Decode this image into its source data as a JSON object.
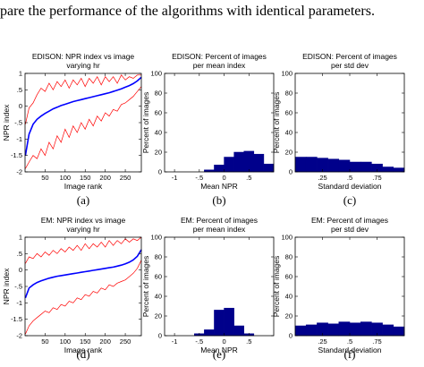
{
  "intro_text": "pare the performance of the algorithms with identical parameters.",
  "colors": {
    "red": "#ff0000",
    "blue": "#0000ff",
    "bar": "#00008b",
    "axis": "#000000"
  },
  "chart_data": [
    {
      "id": "a",
      "caption": "(a)",
      "type": "line",
      "title": [
        "EDISON: NPR index vs image",
        "varying hr"
      ],
      "xlabel": "Image rank",
      "ylabel": "NPR index",
      "xlim": [
        0,
        290
      ],
      "ylim": [
        -2,
        1
      ],
      "xticks": [
        50,
        100,
        150,
        200,
        250
      ],
      "yticks": [
        -2,
        -1.5,
        -1,
        -0.5,
        0,
        0.5,
        1
      ],
      "x": [
        1,
        10,
        20,
        30,
        40,
        50,
        60,
        70,
        80,
        90,
        100,
        110,
        120,
        130,
        140,
        150,
        160,
        170,
        180,
        190,
        200,
        210,
        220,
        230,
        240,
        250,
        260,
        270,
        280,
        290
      ],
      "series": [
        {
          "role": "max",
          "color": "#ff0000",
          "values": [
            -0.55,
            -0.05,
            0.1,
            0.35,
            0.55,
            0.45,
            0.7,
            0.5,
            0.75,
            0.6,
            0.8,
            0.55,
            0.8,
            0.65,
            0.85,
            0.6,
            0.85,
            0.7,
            0.9,
            0.65,
            0.9,
            0.75,
            0.9,
            0.7,
            0.95,
            0.8,
            0.9,
            0.85,
            0.95,
            0.95
          ]
        },
        {
          "role": "mean",
          "color": "#0000ff",
          "values": [
            -1.5,
            -0.85,
            -0.55,
            -0.4,
            -0.3,
            -0.22,
            -0.15,
            -0.08,
            -0.03,
            0.02,
            0.06,
            0.1,
            0.14,
            0.17,
            0.2,
            0.23,
            0.26,
            0.29,
            0.32,
            0.35,
            0.38,
            0.41,
            0.45,
            0.49,
            0.53,
            0.58,
            0.63,
            0.69,
            0.77,
            0.88
          ]
        },
        {
          "role": "min",
          "color": "#ff0000",
          "values": [
            -1.9,
            -1.7,
            -1.5,
            -1.6,
            -1.3,
            -1.5,
            -1.1,
            -1.3,
            -0.9,
            -1.1,
            -0.7,
            -0.95,
            -0.6,
            -0.8,
            -0.5,
            -0.7,
            -0.4,
            -0.6,
            -0.3,
            -0.45,
            -0.2,
            -0.3,
            -0.1,
            -0.15,
            0.05,
            0.1,
            0.2,
            0.3,
            0.45,
            0.6
          ]
        }
      ]
    },
    {
      "id": "b",
      "caption": "(b)",
      "type": "bar",
      "title": [
        "EDISON: Percent of images",
        "per mean index"
      ],
      "xlabel": "Mean NPR",
      "ylabel": "Percent of images",
      "xlim": [
        -1.2,
        1.0
      ],
      "ylim": [
        0,
        100
      ],
      "xticks": [
        -1,
        -0.5,
        0,
        0.5
      ],
      "yticks": [
        0,
        20,
        40,
        60,
        80,
        100
      ],
      "bin_edges": [
        -1.0,
        -0.8,
        -0.6,
        -0.4,
        -0.2,
        0.0,
        0.2,
        0.4,
        0.6,
        0.8,
        1.0
      ],
      "values": [
        0,
        0,
        0,
        2,
        7,
        15,
        20,
        21,
        18,
        8
      ]
    },
    {
      "id": "c",
      "caption": "(c)",
      "type": "bar",
      "title": [
        "EDISON: Percent of images",
        "per std dev"
      ],
      "xlabel": "Standard deviation",
      "ylabel": "Percent of images",
      "xlim": [
        0,
        1
      ],
      "ylim": [
        0,
        100
      ],
      "xticks": [
        0.25,
        0.5,
        0.75
      ],
      "yticks": [
        0,
        20,
        40,
        60,
        80,
        100
      ],
      "bin_edges": [
        0,
        0.1,
        0.2,
        0.3,
        0.4,
        0.5,
        0.6,
        0.7,
        0.8,
        0.9,
        1.0
      ],
      "values": [
        15,
        15,
        14,
        13,
        12,
        10,
        10,
        8,
        5,
        4
      ]
    },
    {
      "id": "d",
      "caption": "(d)",
      "type": "line",
      "title": [
        "EM: NPR index vs image",
        "varying hr"
      ],
      "xlabel": "Image rank",
      "ylabel": "NPR index",
      "xlim": [
        0,
        290
      ],
      "ylim": [
        -2,
        1
      ],
      "xticks": [
        50,
        100,
        150,
        200,
        250
      ],
      "yticks": [
        -2,
        -1.5,
        -1,
        -0.5,
        0,
        0.5,
        1
      ],
      "x": [
        1,
        10,
        20,
        30,
        40,
        50,
        60,
        70,
        80,
        90,
        100,
        110,
        120,
        130,
        140,
        150,
        160,
        170,
        180,
        190,
        200,
        210,
        220,
        230,
        240,
        250,
        260,
        270,
        280,
        290
      ],
      "series": [
        {
          "role": "max",
          "color": "#ff0000",
          "values": [
            0.2,
            0.4,
            0.35,
            0.5,
            0.4,
            0.55,
            0.45,
            0.6,
            0.5,
            0.65,
            0.55,
            0.7,
            0.6,
            0.75,
            0.6,
            0.8,
            0.65,
            0.8,
            0.7,
            0.85,
            0.7,
            0.9,
            0.75,
            0.9,
            0.8,
            0.95,
            0.85,
            0.95,
            0.9,
            1.0
          ]
        },
        {
          "role": "mean",
          "color": "#0000ff",
          "values": [
            -0.85,
            -0.55,
            -0.45,
            -0.38,
            -0.33,
            -0.29,
            -0.25,
            -0.22,
            -0.19,
            -0.17,
            -0.15,
            -0.13,
            -0.11,
            -0.09,
            -0.07,
            -0.05,
            -0.03,
            -0.01,
            0.01,
            0.03,
            0.05,
            0.07,
            0.09,
            0.12,
            0.15,
            0.19,
            0.24,
            0.31,
            0.42,
            0.62
          ]
        },
        {
          "role": "min",
          "color": "#ff0000",
          "values": [
            -1.95,
            -1.7,
            -1.55,
            -1.45,
            -1.35,
            -1.25,
            -1.3,
            -1.15,
            -1.2,
            -1.05,
            -1.1,
            -0.95,
            -1.0,
            -0.85,
            -0.9,
            -0.75,
            -0.8,
            -0.65,
            -0.7,
            -0.55,
            -0.6,
            -0.45,
            -0.5,
            -0.4,
            -0.35,
            -0.3,
            -0.2,
            -0.1,
            0.05,
            0.3
          ]
        }
      ]
    },
    {
      "id": "e",
      "caption": "(e)",
      "type": "bar",
      "title": [
        "EM: Percent of images",
        "per mean index"
      ],
      "xlabel": "Mean NPR",
      "ylabel": "Percent of images",
      "xlim": [
        -1.2,
        1.0
      ],
      "ylim": [
        0,
        100
      ],
      "xticks": [
        -1,
        -0.5,
        0,
        0.5
      ],
      "yticks": [
        0,
        20,
        40,
        60,
        80,
        100
      ],
      "bin_edges": [
        -1.0,
        -0.8,
        -0.6,
        -0.4,
        -0.2,
        0.0,
        0.2,
        0.4,
        0.6,
        0.8,
        1.0
      ],
      "values": [
        0,
        0,
        2,
        6,
        26,
        28,
        10,
        2,
        0,
        0
      ]
    },
    {
      "id": "f",
      "caption": "(f)",
      "type": "bar",
      "title": [
        "EM: Percent of images",
        "per std dev"
      ],
      "xlabel": "Standard deviation",
      "ylabel": "Percent of images",
      "xlim": [
        0,
        1
      ],
      "ylim": [
        0,
        100
      ],
      "xticks": [
        0.25,
        0.5,
        0.75
      ],
      "yticks": [
        0,
        20,
        40,
        60,
        80,
        100
      ],
      "bin_edges": [
        0,
        0.1,
        0.2,
        0.3,
        0.4,
        0.5,
        0.6,
        0.7,
        0.8,
        0.9,
        1.0
      ],
      "values": [
        10,
        11,
        13,
        12,
        14,
        13,
        14,
        13,
        11,
        9
      ]
    }
  ]
}
